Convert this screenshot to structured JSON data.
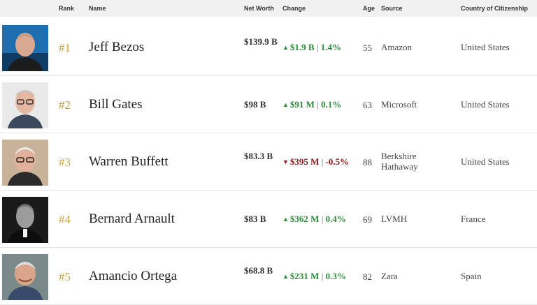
{
  "colors": {
    "up": "#2e8b3a",
    "down": "#8b1a1a",
    "rank": "#c9a24a",
    "header_bg": "#f1f1f1"
  },
  "header": {
    "rank": "Rank",
    "name": "Name",
    "net_worth": "Net Worth",
    "change": "Change",
    "age": "Age",
    "source": "Source",
    "country": "Country of Citizenship"
  },
  "rows": [
    {
      "rank": "#1",
      "name": "Jeff Bezos",
      "net_worth": "$139.9 B",
      "direction": "up",
      "arrow_icon": "arrow-up-icon",
      "change_amount": "$1.9 B",
      "change_sep": "|",
      "change_pct": "1.4%",
      "age": "55",
      "source": "Amazon",
      "country": "United States"
    },
    {
      "rank": "#2",
      "name": "Bill Gates",
      "net_worth": "$98 B",
      "direction": "up",
      "arrow_icon": "arrow-up-icon",
      "change_amount": "$91 M",
      "change_sep": "|",
      "change_pct": "0.1%",
      "age": "63",
      "source": "Microsoft",
      "country": "United States"
    },
    {
      "rank": "#3",
      "name": "Warren Buffett",
      "net_worth": "$83.3 B",
      "direction": "down",
      "arrow_icon": "arrow-down-icon",
      "change_amount": "$395 M",
      "change_sep": "|",
      "change_pct": "-0.5%",
      "age": "88",
      "source": "Berkshire Hathaway",
      "country": "United States"
    },
    {
      "rank": "#4",
      "name": "Bernard Arnault",
      "net_worth": "$83 B",
      "direction": "up",
      "arrow_icon": "arrow-up-icon",
      "change_amount": "$362 M",
      "change_sep": "|",
      "change_pct": "0.4%",
      "age": "69",
      "source": "LVMH",
      "country": "France"
    },
    {
      "rank": "#5",
      "name": "Amancio Ortega",
      "net_worth": "$68.8 B",
      "direction": "up",
      "arrow_icon": "arrow-up-icon",
      "change_amount": "$231 M",
      "change_sep": "|",
      "change_pct": "0.3%",
      "age": "82",
      "source": "Zara",
      "country": "Spain"
    }
  ]
}
